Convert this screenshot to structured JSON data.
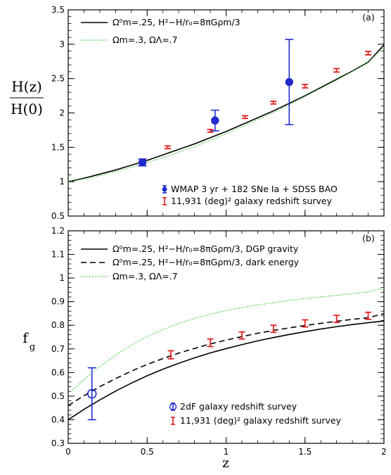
{
  "chart_data": [
    {
      "type": "line",
      "panel_label": "(a)",
      "ylabel_top": "H(z)",
      "ylabel_bottom": "H(0)",
      "xlabel": "",
      "xlim": [
        0,
        2
      ],
      "ylim": [
        0.5,
        3.5
      ],
      "x_ticks": [
        "0",
        "0.5",
        "1",
        "1.5",
        "2"
      ],
      "y_ticks": [
        "0.5",
        "1",
        "1.5",
        "2",
        "2.5",
        "3",
        "3.5"
      ],
      "grid": false,
      "legend_position": "top-left",
      "series": [
        {
          "name": "Ω⁰m=.25, H²−H/r₀=8πGρm/3",
          "style": "solid",
          "color": "#000000",
          "x": [
            0,
            0.1,
            0.2,
            0.3,
            0.4,
            0.5,
            0.6,
            0.7,
            0.8,
            0.9,
            1.0,
            1.1,
            1.2,
            1.3,
            1.4,
            1.5,
            1.6,
            1.7,
            1.8,
            1.9,
            2.0
          ],
          "values": [
            1.0,
            1.05,
            1.11,
            1.17,
            1.24,
            1.31,
            1.39,
            1.47,
            1.55,
            1.64,
            1.73,
            1.83,
            1.93,
            2.03,
            2.14,
            2.25,
            2.37,
            2.49,
            2.61,
            2.74,
            2.99
          ]
        },
        {
          "name": "Ωm=.3, ΩΛ=.7",
          "style": "dotted",
          "color": "#22cc22",
          "x": [
            0,
            0.1,
            0.2,
            0.3,
            0.4,
            0.5,
            0.6,
            0.7,
            0.8,
            0.9,
            1.0,
            1.1,
            1.2,
            1.3,
            1.4,
            1.5,
            1.6,
            1.7,
            1.8,
            1.9,
            2.0
          ],
          "values": [
            1.0,
            1.04,
            1.09,
            1.15,
            1.21,
            1.28,
            1.35,
            1.43,
            1.51,
            1.6,
            1.7,
            1.8,
            1.9,
            2.01,
            2.12,
            2.24,
            2.36,
            2.48,
            2.61,
            2.74,
            2.96
          ]
        }
      ],
      "points": [
        {
          "name": "WMAP 3 yr + 182 SNe Ia + SDSS BAO",
          "color": "#1f2bcc",
          "marker": "filled-circle",
          "x": [
            0.47,
            0.93,
            1.4
          ],
          "values": [
            1.28,
            1.89,
            2.45
          ],
          "err_low": [
            0.05,
            0.15,
            0.62
          ],
          "err_high": [
            0.05,
            0.15,
            0.62
          ]
        },
        {
          "name": "11,931 (deg)² galaxy redshift survey",
          "color": "#e02020",
          "marker": "errorbar",
          "x": [
            0.63,
            0.9,
            1.12,
            1.3,
            1.5,
            1.7,
            1.9
          ],
          "values": [
            1.5,
            1.74,
            1.94,
            2.15,
            2.39,
            2.62,
            2.87
          ],
          "err_low": [
            0.02,
            0.02,
            0.02,
            0.02,
            0.025,
            0.025,
            0.025
          ],
          "err_high": [
            0.02,
            0.02,
            0.02,
            0.02,
            0.025,
            0.025,
            0.025
          ]
        }
      ]
    },
    {
      "type": "line",
      "panel_label": "(b)",
      "xlabel": "z",
      "ylabel": "f",
      "ylabel_sub": "g",
      "xlim": [
        0,
        2
      ],
      "ylim": [
        0.3,
        1.2
      ],
      "x_ticks": [
        "0",
        "0.5",
        "1",
        "1.5",
        "2"
      ],
      "y_ticks": [
        "0.3",
        "0.4",
        "0.5",
        "0.6",
        "0.7",
        "0.8",
        "0.9",
        "1",
        "1.1",
        "1.2"
      ],
      "grid": false,
      "legend_position": "top-left",
      "series": [
        {
          "name": "Ω⁰m=.25, H²−H/r₀=8πGρm/3, DGP gravity",
          "style": "solid",
          "color": "#000000",
          "x": [
            0,
            0.1,
            0.2,
            0.3,
            0.4,
            0.5,
            0.6,
            0.7,
            0.8,
            0.9,
            1.0,
            1.1,
            1.2,
            1.3,
            1.4,
            1.5,
            1.6,
            1.7,
            1.8,
            1.9,
            2.0
          ],
          "values": [
            0.4,
            0.444,
            0.484,
            0.521,
            0.555,
            0.586,
            0.614,
            0.639,
            0.662,
            0.683,
            0.701,
            0.718,
            0.734,
            0.748,
            0.761,
            0.773,
            0.784,
            0.794,
            0.803,
            0.811,
            0.818
          ]
        },
        {
          "name": "Ω⁰m=.25, H²−H/r₀=8πGρm/3, dark energy",
          "style": "dashed",
          "color": "#000000",
          "x": [
            0,
            0.1,
            0.2,
            0.3,
            0.4,
            0.5,
            0.6,
            0.7,
            0.8,
            0.9,
            1.0,
            1.1,
            1.2,
            1.3,
            1.4,
            1.5,
            1.6,
            1.7,
            1.8,
            1.9,
            2.0
          ],
          "values": [
            0.46,
            0.502,
            0.54,
            0.574,
            0.606,
            0.634,
            0.659,
            0.682,
            0.702,
            0.721,
            0.737,
            0.752,
            0.766,
            0.778,
            0.789,
            0.799,
            0.808,
            0.817,
            0.825,
            0.832,
            0.849
          ]
        },
        {
          "name": "Ωm=.3, ΩΛ=.7",
          "style": "dotted",
          "color": "#22cc22",
          "x": [
            0,
            0.1,
            0.2,
            0.3,
            0.4,
            0.5,
            0.6,
            0.7,
            0.8,
            0.9,
            1.0,
            1.1,
            1.2,
            1.3,
            1.4,
            1.5,
            1.6,
            1.7,
            1.8,
            1.9,
            2.0
          ],
          "values": [
            0.51,
            0.57,
            0.625,
            0.674,
            0.716,
            0.752,
            0.782,
            0.808,
            0.829,
            0.847,
            0.862,
            0.875,
            0.886,
            0.896,
            0.905,
            0.913,
            0.92,
            0.927,
            0.934,
            0.941,
            0.958
          ]
        }
      ],
      "points": [
        {
          "name": "2dF galaxy redshift survey",
          "color": "#1f2bcc",
          "marker": "open-circle",
          "x": [
            0.15
          ],
          "values": [
            0.51
          ],
          "err_low": [
            0.11
          ],
          "err_high": [
            0.11
          ]
        },
        {
          "name": "11,931 (deg)² galaxy redshift survey",
          "color": "#e02020",
          "marker": "errorbar",
          "x": [
            0.65,
            0.9,
            1.1,
            1.3,
            1.5,
            1.7,
            1.9
          ],
          "values": [
            0.675,
            0.726,
            0.757,
            0.785,
            0.808,
            0.827,
            0.84
          ],
          "err_low": [
            0.017,
            0.016,
            0.015,
            0.015,
            0.015,
            0.015,
            0.015
          ],
          "err_high": [
            0.017,
            0.016,
            0.015,
            0.015,
            0.015,
            0.015,
            0.015
          ]
        }
      ]
    }
  ]
}
